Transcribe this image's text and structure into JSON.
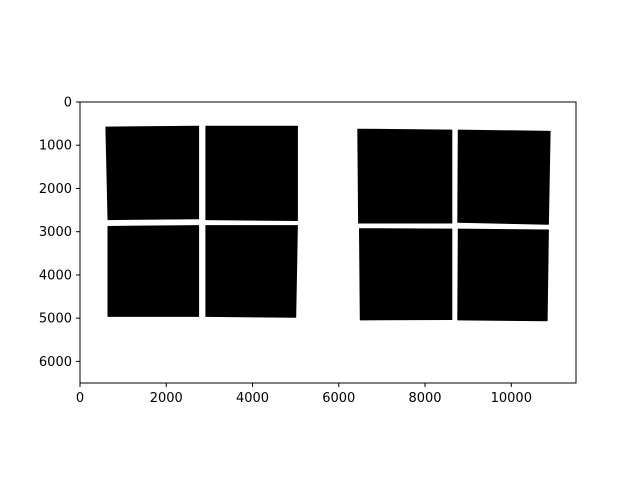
{
  "chart_data": {
    "type": "heatmap",
    "title": "",
    "xlabel": "",
    "ylabel": "",
    "xlim": [
      0,
      11500
    ],
    "ylim": [
      6500,
      0
    ],
    "y_axis_inverted": true,
    "grid": false,
    "colors": {
      "foreground": "#000000",
      "background": "#ffffff"
    },
    "x_ticks": [
      {
        "value": 0,
        "label": "0"
      },
      {
        "value": 2000,
        "label": "2000"
      },
      {
        "value": 4000,
        "label": "4000"
      },
      {
        "value": 6000,
        "label": "6000"
      },
      {
        "value": 8000,
        "label": "8000"
      },
      {
        "value": 10000,
        "label": "10000"
      }
    ],
    "y_ticks": [
      {
        "value": 0,
        "label": "0"
      },
      {
        "value": 1000,
        "label": "1000"
      },
      {
        "value": 2000,
        "label": "2000"
      },
      {
        "value": 3000,
        "label": "3000"
      },
      {
        "value": 4000,
        "label": "4000"
      },
      {
        "value": 5000,
        "label": "5000"
      },
      {
        "value": 6000,
        "label": "6000"
      }
    ],
    "regions": [
      {
        "group": "left",
        "polygon": [
          [
            600,
            580
          ],
          [
            2750,
            560
          ],
          [
            2750,
            2700
          ],
          [
            650,
            2720
          ]
        ]
      },
      {
        "group": "left",
        "polygon": [
          [
            2920,
            560
          ],
          [
            5040,
            560
          ],
          [
            5040,
            2740
          ],
          [
            2920,
            2720
          ]
        ]
      },
      {
        "group": "left",
        "polygon": [
          [
            650,
            2880
          ],
          [
            2750,
            2860
          ],
          [
            2750,
            4960
          ],
          [
            650,
            4960
          ]
        ]
      },
      {
        "group": "left",
        "polygon": [
          [
            2920,
            2860
          ],
          [
            5040,
            2860
          ],
          [
            5000,
            4980
          ],
          [
            2920,
            4960
          ]
        ]
      },
      {
        "group": "right",
        "polygon": [
          [
            6440,
            630
          ],
          [
            8620,
            650
          ],
          [
            8620,
            2800
          ],
          [
            6460,
            2800
          ]
        ]
      },
      {
        "group": "right",
        "polygon": [
          [
            8770,
            650
          ],
          [
            10900,
            680
          ],
          [
            10860,
            2830
          ],
          [
            8760,
            2780
          ]
        ]
      },
      {
        "group": "right",
        "polygon": [
          [
            6480,
            2930
          ],
          [
            8620,
            2940
          ],
          [
            8620,
            5030
          ],
          [
            6500,
            5040
          ]
        ]
      },
      {
        "group": "right",
        "polygon": [
          [
            8770,
            2940
          ],
          [
            10860,
            2960
          ],
          [
            10830,
            5060
          ],
          [
            8760,
            5040
          ]
        ]
      }
    ]
  }
}
